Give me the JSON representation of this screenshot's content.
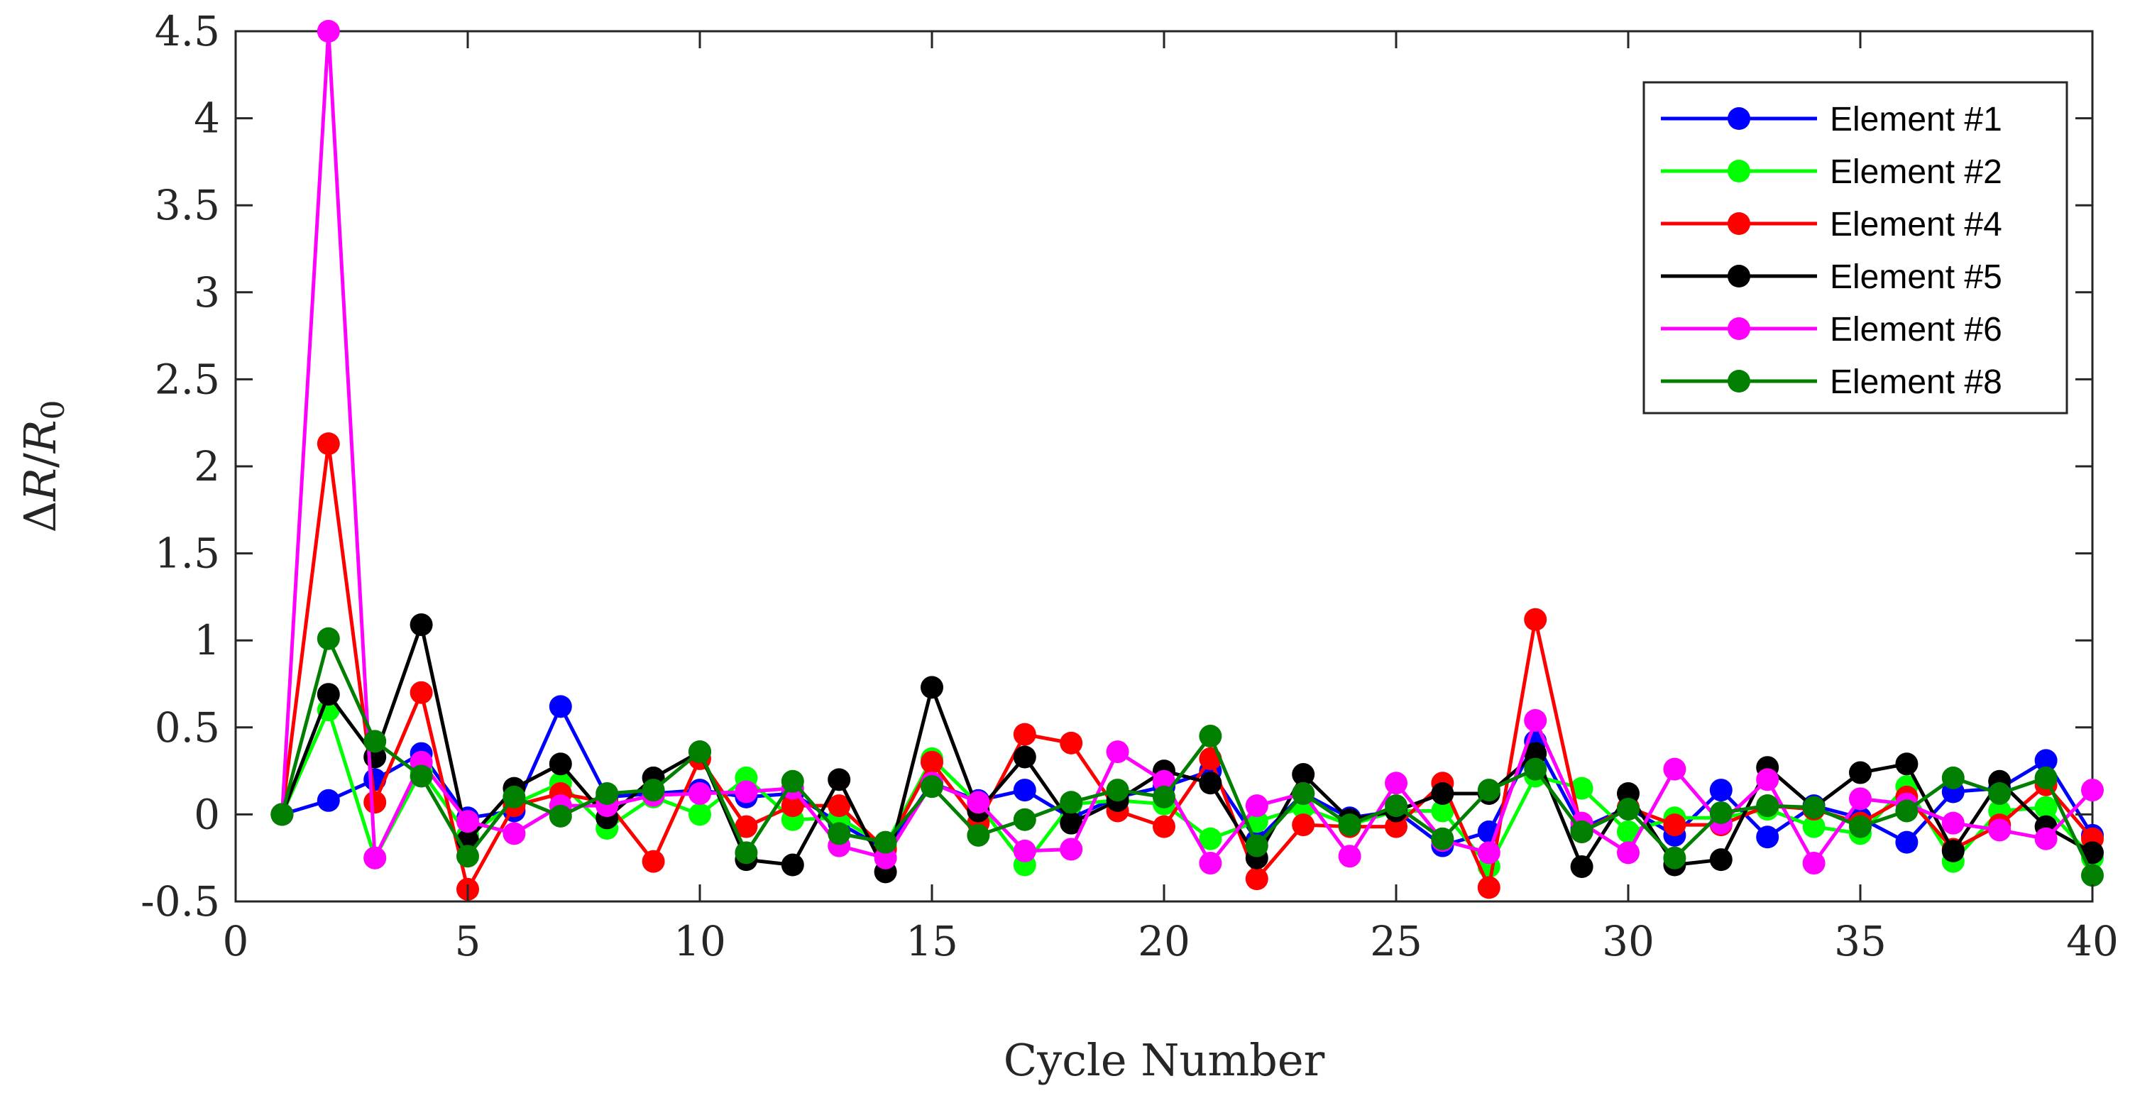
{
  "chart_data": {
    "type": "line",
    "title": "",
    "xlabel": "Cycle Number",
    "ylabel": "ΔR/R0",
    "ylabel_parts": {
      "delta": "Δ",
      "var": "R",
      "slash": "/",
      "base": "R",
      "sub": "0"
    },
    "xlim": [
      0,
      40
    ],
    "ylim": [
      -0.5,
      4.5
    ],
    "xticks": [
      0,
      5,
      10,
      15,
      20,
      25,
      30,
      35,
      40
    ],
    "yticks": [
      -0.5,
      0,
      0.5,
      1,
      1.5,
      2,
      2.5,
      3,
      3.5,
      4,
      4.5
    ],
    "xtick_labels": [
      "0",
      "5",
      "10",
      "15",
      "20",
      "25",
      "30",
      "35",
      "40"
    ],
    "ytick_labels": [
      "-0.5",
      "0",
      "0.5",
      "1",
      "1.5",
      "2",
      "2.5",
      "3",
      "3.5",
      "4",
      "4.5"
    ],
    "grid": false,
    "legend_position": "top-right",
    "x": [
      1,
      2,
      3,
      4,
      5,
      6,
      7,
      8,
      9,
      10,
      11,
      12,
      13,
      14,
      15,
      16,
      17,
      18,
      19,
      20,
      21,
      22,
      23,
      24,
      25,
      26,
      27,
      28,
      29,
      30,
      31,
      32,
      33,
      34,
      35,
      36,
      37,
      38,
      39,
      40
    ],
    "series": [
      {
        "name": "Element #1",
        "color": "#0000ff",
        "values": [
          0,
          0.08,
          0.2,
          0.35,
          -0.02,
          0.02,
          0.62,
          0.1,
          0.12,
          0.14,
          0.1,
          0.12,
          -0.05,
          -0.2,
          0.18,
          0.08,
          0.14,
          -0.02,
          0.1,
          0.16,
          0.25,
          -0.15,
          0.12,
          -0.02,
          0.02,
          -0.18,
          -0.1,
          0.42,
          -0.08,
          0.04,
          -0.12,
          0.14,
          -0.13,
          0.05,
          -0.02,
          -0.16,
          0.13,
          0.15,
          0.31,
          -0.12
        ]
      },
      {
        "name": "Element #2",
        "color": "#00ff00",
        "values": [
          0,
          0.6,
          -0.25,
          0.25,
          -0.12,
          0.06,
          0.18,
          -0.08,
          0.1,
          0,
          0.21,
          -0.03,
          -0.02,
          -0.18,
          0.32,
          0.06,
          -0.29,
          0.06,
          0.08,
          0.06,
          -0.14,
          -0.04,
          0.04,
          -0.06,
          0.02,
          0.02,
          -0.3,
          0.22,
          0.15,
          -0.1,
          -0.02,
          -0.02,
          0.03,
          -0.07,
          -0.11,
          0.16,
          -0.27,
          0.02,
          0.04,
          -0.25
        ]
      },
      {
        "name": "Element #4",
        "color": "#ff0000",
        "values": [
          0,
          2.13,
          0.07,
          0.7,
          -0.43,
          0.05,
          0.12,
          0.07,
          -0.27,
          0.32,
          -0.07,
          0.05,
          0.05,
          -0.2,
          0.3,
          -0.05,
          0.46,
          0.41,
          0.02,
          -0.07,
          0.32,
          -0.37,
          -0.06,
          -0.07,
          -0.07,
          0.18,
          -0.42,
          1.12,
          -0.1,
          0.04,
          -0.06,
          -0.06,
          0.05,
          0.03,
          -0.05,
          0.1,
          -0.2,
          -0.06,
          0.17,
          -0.14
        ]
      },
      {
        "name": "Element #5",
        "color": "#000000",
        "values": [
          0,
          0.69,
          0.33,
          1.09,
          -0.15,
          0.15,
          0.29,
          -0.02,
          0.21,
          0.36,
          -0.26,
          -0.29,
          0.2,
          -0.33,
          0.73,
          0.02,
          0.33,
          -0.05,
          0.08,
          0.25,
          0.18,
          -0.25,
          0.23,
          -0.03,
          0.02,
          0.12,
          0.12,
          0.35,
          -0.3,
          0.12,
          -0.29,
          -0.26,
          0.27,
          0.04,
          0.24,
          0.29,
          -0.21,
          0.19,
          -0.07,
          -0.22
        ]
      },
      {
        "name": "Element #6",
        "color": "#ff00ff",
        "values": [
          0,
          4.5,
          -0.25,
          0.3,
          -0.04,
          -0.11,
          0.05,
          0.05,
          0.11,
          0.12,
          0.13,
          0.15,
          -0.18,
          -0.25,
          0.18,
          0.07,
          -0.21,
          -0.2,
          0.36,
          0.19,
          -0.28,
          0.05,
          0.12,
          -0.24,
          0.18,
          -0.15,
          -0.22,
          0.54,
          -0.05,
          -0.22,
          0.26,
          -0.05,
          0.2,
          -0.28,
          0.09,
          0.06,
          -0.05,
          -0.09,
          -0.14,
          0.14
        ]
      },
      {
        "name": "Element #8",
        "color": "#007f00",
        "values": [
          0,
          1.01,
          0.42,
          0.22,
          -0.24,
          0.1,
          -0.01,
          0.12,
          0.14,
          0.36,
          -0.22,
          0.19,
          -0.11,
          -0.16,
          0.16,
          -0.12,
          -0.03,
          0.07,
          0.14,
          0.1,
          0.45,
          -0.18,
          0.12,
          -0.06,
          0.05,
          -0.14,
          0.14,
          0.26,
          -0.1,
          0.03,
          -0.25,
          0.01,
          0.05,
          0.04,
          -0.07,
          0.02,
          0.21,
          0.12,
          0.21,
          -0.35
        ]
      }
    ]
  }
}
